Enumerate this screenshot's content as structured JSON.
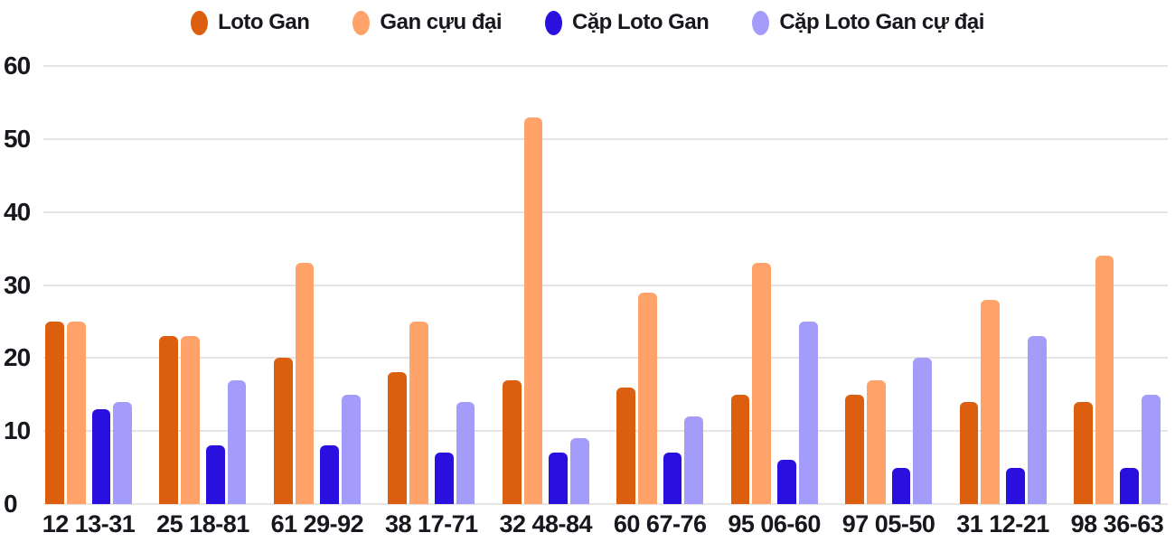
{
  "chart_data": {
    "type": "bar",
    "title": "",
    "xlabel": "",
    "ylabel": "",
    "ylim": [
      0,
      60
    ],
    "yticks": [
      0,
      10,
      20,
      30,
      40,
      50,
      60
    ],
    "grid": true,
    "legend_position": "top",
    "categories": [
      "12 13-31",
      "25 18-81",
      "61 29-92",
      "38 17-71",
      "32 48-84",
      "60 67-76",
      "95 06-60",
      "97 05-50",
      "31 12-21",
      "98 36-63"
    ],
    "series": [
      {
        "name": "Loto Gan",
        "color": "#dc5f10",
        "values": [
          25,
          23,
          20,
          18,
          17,
          16,
          15,
          15,
          14,
          14
        ]
      },
      {
        "name": "Gan cựu đại",
        "color": "#ffa36a",
        "values": [
          25,
          23,
          33,
          25,
          53,
          29,
          33,
          17,
          28,
          34
        ]
      },
      {
        "name": "Cặp Loto Gan",
        "color": "#2a10df",
        "values": [
          13,
          8,
          8,
          7,
          7,
          7,
          6,
          5,
          5,
          5
        ]
      },
      {
        "name": "Cặp Loto Gan cự đại",
        "color": "#a49cfa",
        "values": [
          14,
          17,
          15,
          14,
          9,
          12,
          25,
          20,
          23,
          15
        ]
      }
    ]
  },
  "colors": {
    "text": "#17181d",
    "grid": "#e5e5e5",
    "background": "#ffffff"
  }
}
